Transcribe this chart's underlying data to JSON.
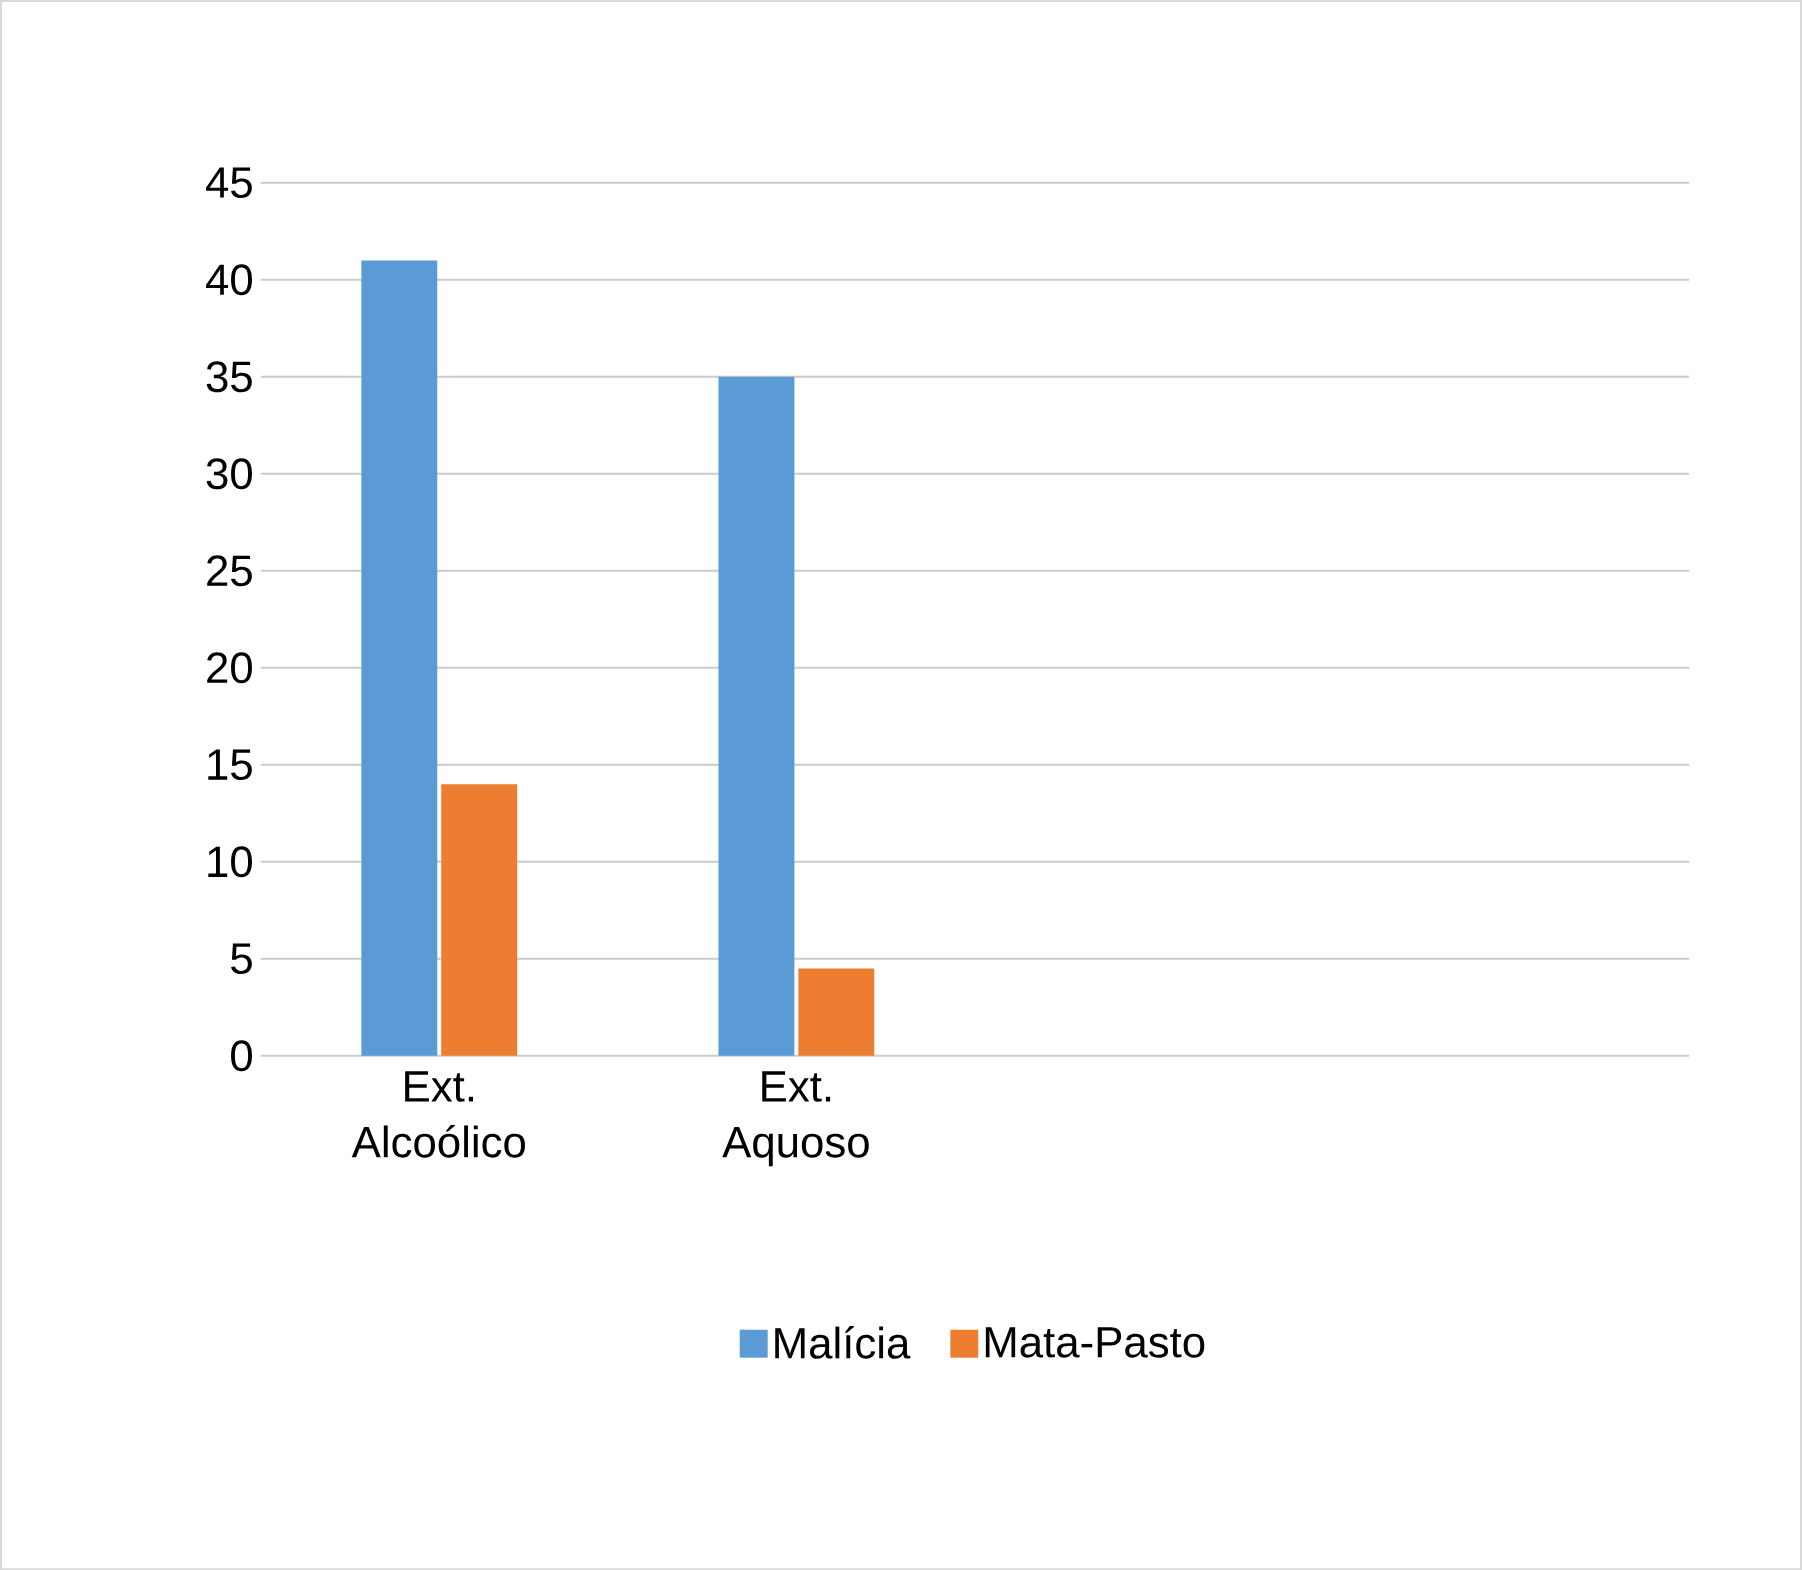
{
  "chart_data": {
    "type": "bar",
    "categories": [
      "Ext. Alcoólico",
      "Ext. Aquoso",
      null,
      null
    ],
    "series": [
      {
        "name": "Malícia",
        "color": "#5b9bd5",
        "values": [
          41,
          35,
          null,
          null
        ]
      },
      {
        "name": "Mata-Pasto",
        "color": "#ed7d31",
        "values": [
          14,
          4.5,
          null,
          null
        ]
      }
    ],
    "ylim": [
      0,
      45
    ],
    "yticks": [
      0,
      5,
      10,
      15,
      20,
      25,
      30,
      35,
      40,
      45
    ],
    "grid": "y",
    "legend": "bottom"
  }
}
